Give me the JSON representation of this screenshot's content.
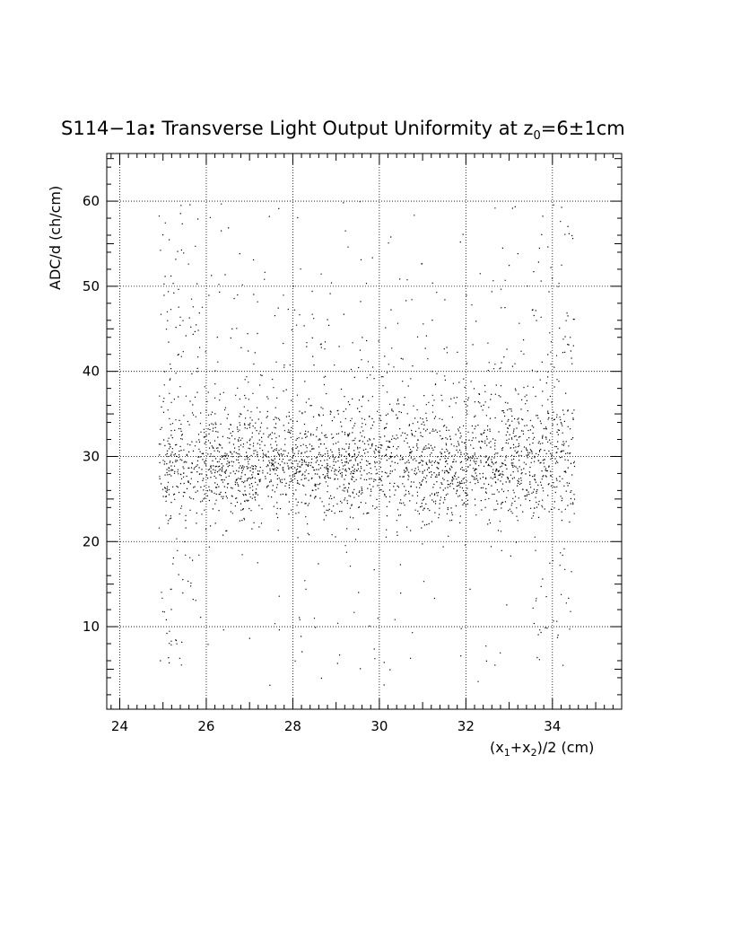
{
  "chart_data": {
    "type": "scatter",
    "title": {
      "main": "S114−1a",
      "colon": ":",
      "rest": " Transverse Light Output Uniformity at z",
      "sub": "0",
      "tail": "=6±1cm"
    },
    "xlabel": {
      "a": "(x",
      "sub1": "1",
      "b": "+x",
      "sub2": "2",
      "c": ")/2 (cm)"
    },
    "ylabel": "ADC/d (ch/cm)",
    "xlim": [
      23.7,
      35.6
    ],
    "ylim": [
      0.3,
      65.6
    ],
    "x_ticks": [
      24,
      26,
      28,
      30,
      32,
      34
    ],
    "x_tick_labels": [
      "24",
      "26",
      "28",
      "30",
      "32",
      "34"
    ],
    "y_ticks": [
      10,
      20,
      30,
      40,
      50,
      60
    ],
    "y_tick_labels": [
      "10",
      "20",
      "30",
      "40",
      "50",
      "60"
    ],
    "grid": true,
    "grid_style": "dotted",
    "point_color": "#000000",
    "description": {
      "x_range": [
        24.9,
        34.5
      ],
      "band_center": 29,
      "band_low": 23,
      "band_high": 36,
      "y_max": 60,
      "n_points": 9000
    }
  }
}
